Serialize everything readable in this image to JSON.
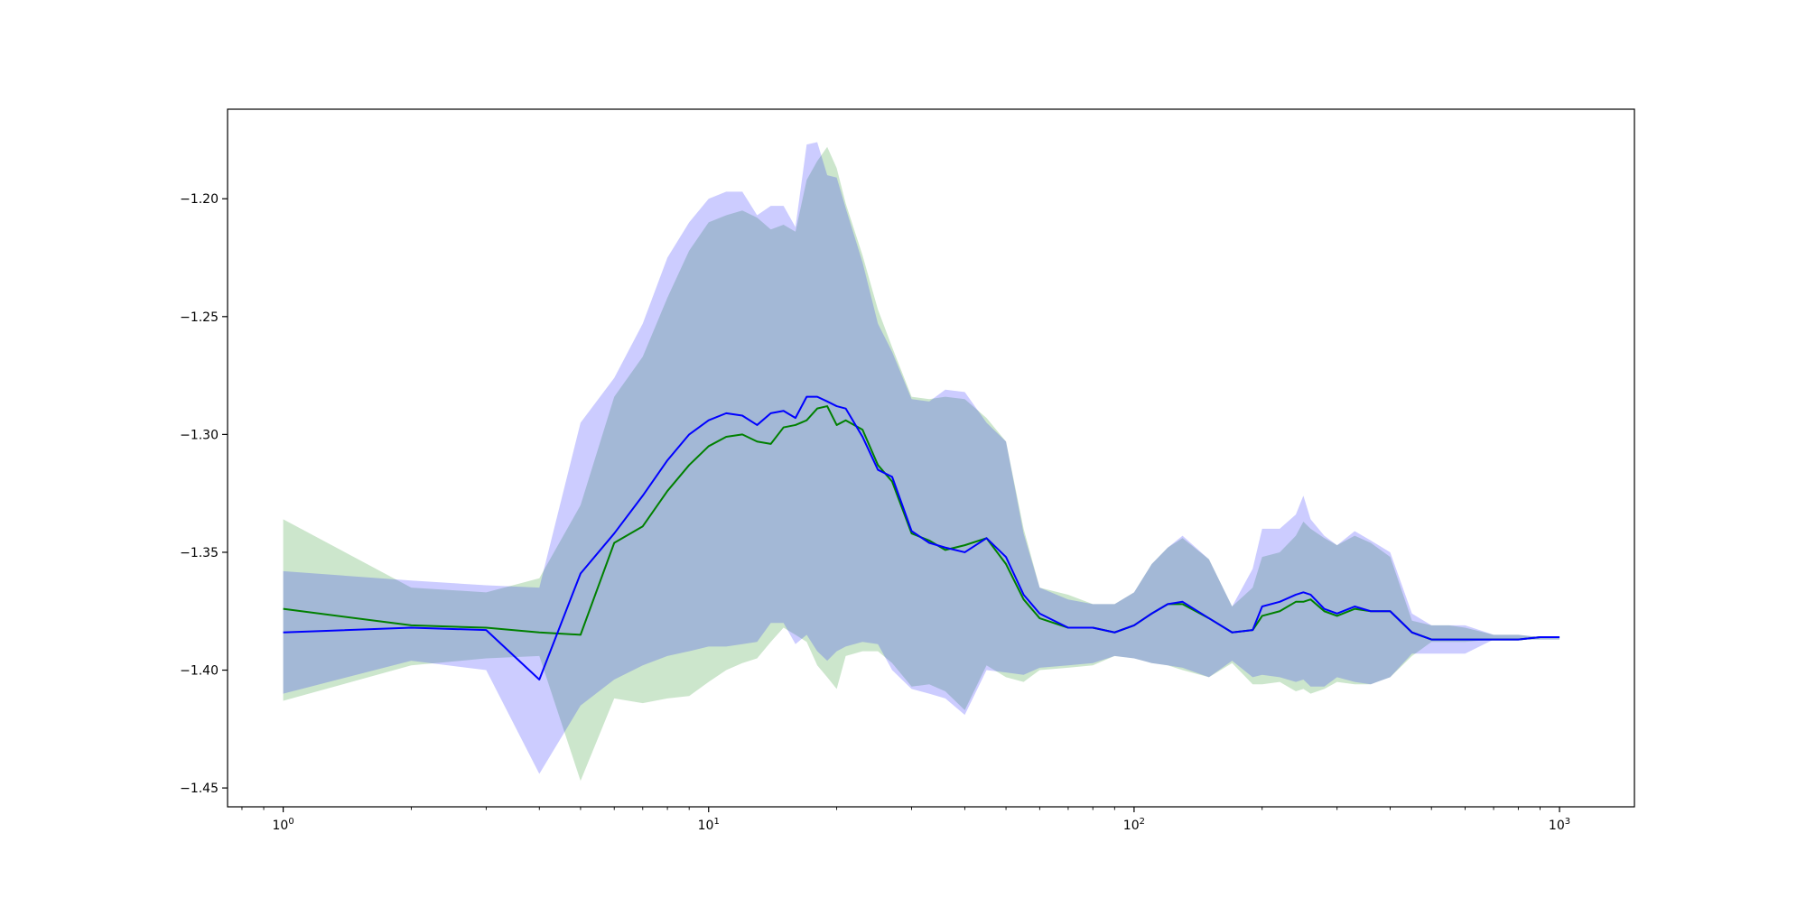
{
  "chart_data": {
    "type": "line",
    "xscale": "log",
    "xlim": [
      0.74,
      1500
    ],
    "ylim": [
      -1.458,
      -1.162
    ],
    "grid": false,
    "legend": "none",
    "x_ticks": [
      1,
      10,
      100,
      1000
    ],
    "x_tick_labels": [
      {
        "base": "10",
        "exp": "0"
      },
      {
        "base": "10",
        "exp": "1"
      },
      {
        "base": "10",
        "exp": "2"
      },
      {
        "base": "10",
        "exp": "3"
      }
    ],
    "y_ticks": [
      -1.2,
      -1.25,
      -1.3,
      -1.35,
      -1.4,
      -1.45
    ],
    "y_tick_labels": [
      "−1.20",
      "−1.25",
      "−1.30",
      "−1.35",
      "−1.40",
      "−1.45"
    ],
    "series": [
      {
        "color": "#008000",
        "band_color": "#008000",
        "band_opacity": 0.2,
        "x": [
          1,
          2,
          3,
          4,
          5,
          6,
          7,
          8,
          9,
          10,
          11,
          12,
          13,
          14,
          15,
          16,
          17,
          18,
          19,
          20,
          21,
          23,
          25,
          27,
          30,
          33,
          36,
          40,
          45,
          50,
          55,
          60,
          70,
          80,
          90,
          100,
          110,
          120,
          130,
          150,
          170,
          190,
          200,
          220,
          240,
          250,
          260,
          280,
          300,
          330,
          360,
          400,
          450,
          500,
          550,
          600,
          700,
          800,
          900,
          1000
        ],
        "y": [
          -1.374,
          -1.381,
          -1.382,
          -1.384,
          -1.385,
          -1.346,
          -1.339,
          -1.324,
          -1.313,
          -1.305,
          -1.301,
          -1.3,
          -1.303,
          -1.304,
          -1.297,
          -1.296,
          -1.294,
          -1.289,
          -1.288,
          -1.296,
          -1.294,
          -1.298,
          -1.313,
          -1.32,
          -1.342,
          -1.345,
          -1.349,
          -1.347,
          -1.344,
          -1.355,
          -1.37,
          -1.378,
          -1.382,
          -1.382,
          -1.384,
          -1.381,
          -1.376,
          -1.372,
          -1.372,
          -1.378,
          -1.384,
          -1.383,
          -1.377,
          -1.375,
          -1.371,
          -1.371,
          -1.37,
          -1.375,
          -1.377,
          -1.374,
          -1.375,
          -1.375,
          -1.384,
          -1.387,
          -1.387,
          -1.387,
          -1.387,
          -1.387,
          -1.386,
          -1.386
        ],
        "lower": [
          -1.413,
          -1.398,
          -1.395,
          -1.394,
          -1.447,
          -1.412,
          -1.414,
          -1.412,
          -1.411,
          -1.405,
          -1.4,
          -1.397,
          -1.395,
          -1.388,
          -1.382,
          -1.385,
          -1.388,
          -1.398,
          -1.403,
          -1.408,
          -1.394,
          -1.392,
          -1.392,
          -1.397,
          -1.407,
          -1.406,
          -1.409,
          -1.417,
          -1.398,
          -1.403,
          -1.405,
          -1.4,
          -1.399,
          -1.398,
          -1.394,
          -1.395,
          -1.397,
          -1.398,
          -1.4,
          -1.403,
          -1.397,
          -1.406,
          -1.406,
          -1.405,
          -1.409,
          -1.408,
          -1.41,
          -1.408,
          -1.405,
          -1.406,
          -1.406,
          -1.403,
          -1.394,
          -1.388,
          -1.388,
          -1.388,
          -1.387,
          -1.387,
          -1.387,
          -1.387
        ],
        "upper": [
          -1.336,
          -1.365,
          -1.367,
          -1.361,
          -1.33,
          -1.284,
          -1.267,
          -1.242,
          -1.222,
          -1.21,
          -1.207,
          -1.205,
          -1.208,
          -1.213,
          -1.211,
          -1.214,
          -1.192,
          -1.184,
          -1.178,
          -1.187,
          -1.202,
          -1.224,
          -1.247,
          -1.263,
          -1.284,
          -1.285,
          -1.284,
          -1.285,
          -1.293,
          -1.303,
          -1.34,
          -1.365,
          -1.368,
          -1.372,
          -1.372,
          -1.367,
          -1.355,
          -1.348,
          -1.344,
          -1.353,
          -1.373,
          -1.365,
          -1.352,
          -1.35,
          -1.343,
          -1.337,
          -1.34,
          -1.344,
          -1.347,
          -1.343,
          -1.346,
          -1.352,
          -1.379,
          -1.381,
          -1.381,
          -1.382,
          -1.385,
          -1.385,
          -1.386,
          -1.386
        ]
      },
      {
        "color": "#0000ff",
        "band_color": "#0000ff",
        "band_opacity": 0.2,
        "x": [
          1,
          2,
          3,
          4,
          5,
          6,
          7,
          8,
          9,
          10,
          11,
          12,
          13,
          14,
          15,
          16,
          17,
          18,
          19,
          20,
          21,
          23,
          25,
          27,
          30,
          33,
          36,
          40,
          45,
          50,
          55,
          60,
          70,
          80,
          90,
          100,
          110,
          120,
          130,
          150,
          170,
          190,
          200,
          220,
          240,
          250,
          260,
          280,
          300,
          330,
          360,
          400,
          450,
          500,
          550,
          600,
          700,
          800,
          900,
          1000
        ],
        "y": [
          -1.384,
          -1.382,
          -1.383,
          -1.404,
          -1.359,
          -1.342,
          -1.326,
          -1.311,
          -1.3,
          -1.294,
          -1.291,
          -1.292,
          -1.296,
          -1.291,
          -1.29,
          -1.293,
          -1.284,
          -1.284,
          -1.286,
          -1.288,
          -1.289,
          -1.301,
          -1.315,
          -1.318,
          -1.341,
          -1.346,
          -1.348,
          -1.35,
          -1.344,
          -1.352,
          -1.368,
          -1.376,
          -1.382,
          -1.382,
          -1.384,
          -1.381,
          -1.376,
          -1.372,
          -1.371,
          -1.378,
          -1.384,
          -1.383,
          -1.373,
          -1.371,
          -1.368,
          -1.367,
          -1.368,
          -1.374,
          -1.376,
          -1.373,
          -1.375,
          -1.375,
          -1.384,
          -1.387,
          -1.387,
          -1.387,
          -1.387,
          -1.387,
          -1.386,
          -1.386
        ],
        "lower": [
          -1.41,
          -1.396,
          -1.4,
          -1.444,
          -1.415,
          -1.404,
          -1.398,
          -1.394,
          -1.392,
          -1.39,
          -1.39,
          -1.389,
          -1.388,
          -1.38,
          -1.38,
          -1.389,
          -1.385,
          -1.392,
          -1.396,
          -1.392,
          -1.39,
          -1.388,
          -1.389,
          -1.4,
          -1.408,
          -1.41,
          -1.412,
          -1.419,
          -1.4,
          -1.401,
          -1.402,
          -1.399,
          -1.398,
          -1.397,
          -1.394,
          -1.395,
          -1.397,
          -1.398,
          -1.399,
          -1.403,
          -1.396,
          -1.403,
          -1.402,
          -1.403,
          -1.405,
          -1.404,
          -1.407,
          -1.407,
          -1.403,
          -1.405,
          -1.406,
          -1.403,
          -1.393,
          -1.393,
          -1.393,
          -1.393,
          -1.387,
          -1.387,
          -1.387,
          -1.387
        ],
        "upper": [
          -1.358,
          -1.362,
          -1.364,
          -1.365,
          -1.295,
          -1.276,
          -1.253,
          -1.225,
          -1.21,
          -1.2,
          -1.197,
          -1.197,
          -1.207,
          -1.203,
          -1.203,
          -1.212,
          -1.177,
          -1.176,
          -1.19,
          -1.191,
          -1.204,
          -1.227,
          -1.253,
          -1.265,
          -1.285,
          -1.286,
          -1.281,
          -1.282,
          -1.295,
          -1.303,
          -1.342,
          -1.365,
          -1.37,
          -1.372,
          -1.372,
          -1.367,
          -1.355,
          -1.348,
          -1.343,
          -1.353,
          -1.373,
          -1.357,
          -1.34,
          -1.34,
          -1.334,
          -1.326,
          -1.336,
          -1.343,
          -1.347,
          -1.341,
          -1.345,
          -1.35,
          -1.376,
          -1.381,
          -1.381,
          -1.381,
          -1.385,
          -1.385,
          -1.386,
          -1.386
        ]
      }
    ]
  }
}
